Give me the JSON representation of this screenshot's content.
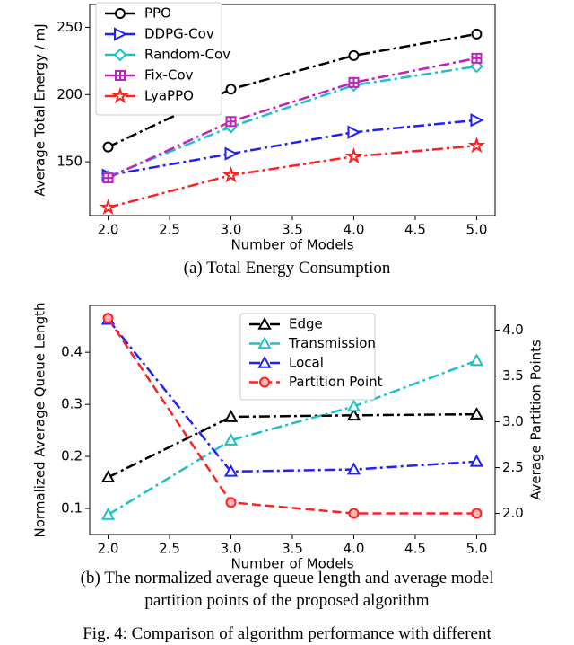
{
  "chart_data": [
    {
      "type": "line",
      "xlabel": "Number of Models",
      "ylabel": "Average Total Energy / mJ",
      "caption": "(a) Total Energy Consumption",
      "x": [
        2,
        3,
        4,
        5
      ],
      "xlim": [
        1.85,
        5.15
      ],
      "xticks": [
        {
          "value": 2,
          "label": "2.0"
        },
        {
          "value": 2.5,
          "label": "2.5"
        },
        {
          "value": 3,
          "label": "3.0"
        },
        {
          "value": 3.5,
          "label": "3.5"
        },
        {
          "value": 4,
          "label": "4.0"
        },
        {
          "value": 4.5,
          "label": "4.5"
        },
        {
          "value": 5,
          "label": "5.0"
        }
      ],
      "ylim": [
        110,
        267
      ],
      "yticks": [
        150,
        200,
        250
      ],
      "legend": "upper left",
      "series": [
        {
          "name": "PPO",
          "color": "#000000",
          "marker": "circle",
          "linestyle": "dashdot",
          "values": [
            161,
            204,
            229,
            245
          ]
        },
        {
          "name": "DDPG-Cov",
          "color": "#1f1fff",
          "marker": "triangle-right",
          "linestyle": "dashdot",
          "values": [
            140,
            156,
            172,
            181
          ]
        },
        {
          "name": "Random-Cov",
          "color": "#19c3c3",
          "marker": "diamond",
          "linestyle": "dashdot",
          "values": [
            139,
            176,
            207,
            221
          ]
        },
        {
          "name": "Fix-Cov",
          "color": "#c21fc2",
          "marker": "plus-square",
          "linestyle": "dashdot",
          "values": [
            138,
            180,
            209,
            227
          ]
        },
        {
          "name": "LyaPPO",
          "color": "#ff2020",
          "marker": "star",
          "linestyle": "dashdot",
          "values": [
            116,
            140,
            154,
            162
          ]
        }
      ]
    },
    {
      "type": "line",
      "xlabel": "Number of Models",
      "ylabel": "Normalized Average Queue Length",
      "y2label": "Average Partition Points",
      "caption": "(b) The normalized average queue length and average model partition points of the proposed algorithm",
      "x": [
        2,
        3,
        4,
        5
      ],
      "xlim": [
        1.85,
        5.15
      ],
      "xticks": [
        {
          "value": 2,
          "label": "2.0"
        },
        {
          "value": 2.5,
          "label": "2.5"
        },
        {
          "value": 3,
          "label": "3.0"
        },
        {
          "value": 3.5,
          "label": "3.5"
        },
        {
          "value": 4,
          "label": "4.0"
        },
        {
          "value": 4.5,
          "label": "4.5"
        },
        {
          "value": 5,
          "label": "5.0"
        }
      ],
      "ylim": [
        0.05,
        0.49
      ],
      "yticks": [
        0.1,
        0.2,
        0.3,
        0.4
      ],
      "y2lim": [
        1.77,
        4.27
      ],
      "y2ticks": [
        {
          "value": 2,
          "label": "2.0"
        },
        {
          "value": 2.5,
          "label": "2.5"
        },
        {
          "value": 3,
          "label": "3.0"
        },
        {
          "value": 3.5,
          "label": "3.5"
        },
        {
          "value": 4,
          "label": "4.0"
        }
      ],
      "legend": "upper center",
      "series": [
        {
          "name": "Edge",
          "color": "#000000",
          "marker": "triangle-up",
          "linestyle": "dashdot",
          "values": [
            0.16,
            0.276,
            0.279,
            0.281
          ]
        },
        {
          "name": "Transmission",
          "color": "#19c3c3",
          "marker": "triangle-up",
          "linestyle": "dashdot",
          "values": [
            0.088,
            0.231,
            0.296,
            0.384
          ]
        },
        {
          "name": "Local",
          "color": "#1f1fff",
          "marker": "triangle-up",
          "linestyle": "dashdot",
          "values": [
            0.463,
            0.171,
            0.175,
            0.19
          ]
        },
        {
          "name": "Partition Point",
          "color": "#ff2020",
          "marker": "circle",
          "linestyle": "dashed",
          "axis": "y2",
          "values": [
            4.13,
            2.12,
            2.0,
            2.0
          ]
        }
      ]
    }
  ],
  "figure_caption": "Fig. 4: Comparison of algorithm performance with different"
}
